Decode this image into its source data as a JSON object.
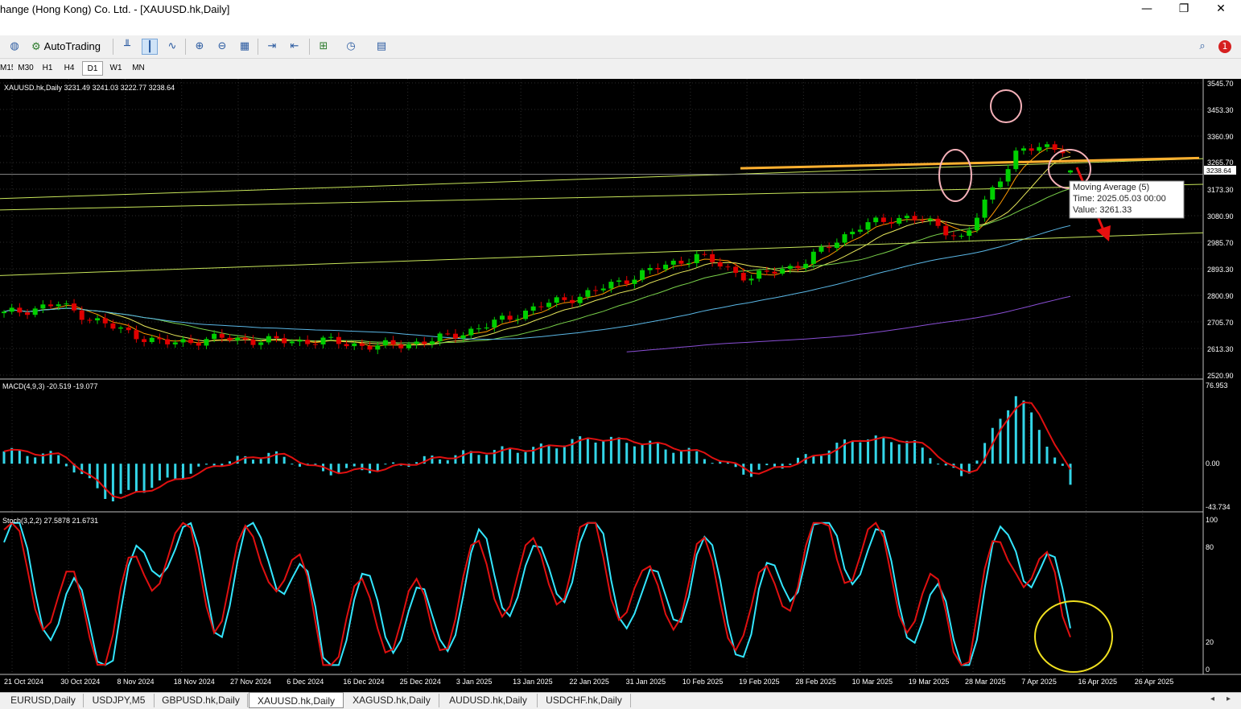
{
  "window": {
    "title": "hange (Hong Kong) Co. Ltd. - [XAUUSD.hk,Daily]",
    "minimize": "—",
    "maximize": "❐",
    "close": "✕",
    "mdi_min": "–",
    "mdi_restore": "🗗",
    "mdi_close": "✕"
  },
  "toolbar": {
    "autotrading_label": "AutoTrading",
    "notification_count": "1",
    "icons": [
      "connection-icon",
      "autotrading-icon",
      "bar-chart-icon",
      "candlestick-icon",
      "line-chart-icon",
      "zoom-in-icon",
      "zoom-out-icon",
      "tile-windows-icon",
      "chart-shift-icon",
      "autoscroll-icon",
      "indicators-icon",
      "periods-icon",
      "templates-icon",
      "search-icon",
      "notifications-icon"
    ]
  },
  "timeframes": [
    "M15",
    "M30",
    "H1",
    "H4",
    "D1",
    "W1",
    "MN"
  ],
  "active_timeframe": "D1",
  "chart": {
    "header": "XAUUSD.hk,Daily  3231.49 3241.03 3222.77 3238.64",
    "ohlc": {
      "open": 3231.49,
      "high": 3241.03,
      "low": 3222.77,
      "close": 3238.64
    },
    "current_price": "3238.64",
    "price_axis": [
      "3545.70",
      "3453.30",
      "3360.90",
      "3265.70",
      "3173.30",
      "3080.90",
      "2985.70",
      "2893.30",
      "2800.90",
      "2705.70",
      "2613.30",
      "2520.90"
    ],
    "date_axis": [
      "21 Oct 2024",
      "30 Oct 2024",
      "8 Nov 2024",
      "18 Nov 2024",
      "27 Nov 2024",
      "6 Dec 2024",
      "16 Dec 2024",
      "25 Dec 2024",
      "3 Jan 2025",
      "13 Jan 2025",
      "22 Jan 2025",
      "31 Jan 2025",
      "10 Feb 2025",
      "19 Feb 2025",
      "28 Feb 2025",
      "10 Mar 2025",
      "19 Mar 2025",
      "28 Mar 2025",
      "7 Apr 2025",
      "16 Apr 2025",
      "26 Apr 2025"
    ],
    "tooltip": {
      "line1": "Moving Average (5)",
      "line2": "Time: 2025.05.03 00:00",
      "line3": "Value: 3261.33"
    },
    "colors": {
      "bull": "#00d000",
      "bear": "#e00000",
      "ma5": "#ff9900",
      "ma10": "#e6e65a",
      "ma20": "#7ad24a",
      "ma50": "#5ab7e6",
      "ma100": "#8a4fd6",
      "trendline": "#ffb030"
    }
  },
  "macd": {
    "label": "MACD(4,9,3) -20.519 -19.077",
    "axis": [
      "76.953",
      "0.00",
      "-43.734"
    ],
    "colors": {
      "histogram": "#33d6e8",
      "signal": "#e01010"
    }
  },
  "stoch": {
    "label": "Stoch(3,2,2) 27.5878 21.6731",
    "axis": [
      "100",
      "80",
      "20",
      "0"
    ],
    "colors": {
      "main": "#33e6ff",
      "signal": "#e01010"
    }
  },
  "chart_data": [
    {
      "type": "candlestick",
      "title": "XAUUSD.hk,Daily",
      "x": [
        "21 Oct 2024",
        "30 Oct 2024",
        "8 Nov 2024",
        "18 Nov 2024",
        "27 Nov 2024",
        "6 Dec 2024",
        "16 Dec 2024",
        "25 Dec 2024",
        "3 Jan 2025",
        "13 Jan 2025",
        "22 Jan 2025",
        "31 Jan 2025",
        "10 Feb 2025",
        "19 Feb 2025",
        "28 Feb 2025",
        "10 Mar 2025",
        "19 Mar 2025",
        "28 Mar 2025",
        "7 Apr 2025",
        "16 Apr 2025",
        "26 Apr 2025"
      ],
      "close": [
        2735,
        2770,
        2690,
        2630,
        2650,
        2640,
        2640,
        2620,
        2640,
        2690,
        2760,
        2810,
        2880,
        2940,
        2860,
        2915,
        3040,
        3080,
        3000,
        3310,
        3320
      ],
      "last_candle": {
        "open": 3231.49,
        "high": 3241.03,
        "low": 3222.77,
        "close": 3238.64
      },
      "ylim": [
        2520.9,
        3545.7
      ]
    },
    {
      "type": "bar",
      "title": "MACD(4,9,3)",
      "x": [
        "21 Oct 2024",
        "30 Oct 2024",
        "8 Nov 2024",
        "18 Nov 2024",
        "27 Nov 2024",
        "6 Dec 2024",
        "16 Dec 2024",
        "25 Dec 2024",
        "3 Jan 2025",
        "13 Jan 2025",
        "22 Jan 2025",
        "31 Jan 2025",
        "10 Feb 2025",
        "19 Feb 2025",
        "28 Feb 2025",
        "10 Mar 2025",
        "19 Mar 2025",
        "28 Mar 2025",
        "7 Apr 2025",
        "16 Apr 2025",
        "26 Apr 2025"
      ],
      "values": [
        12,
        8,
        -35,
        -18,
        0,
        10,
        -8,
        -5,
        5,
        12,
        15,
        25,
        20,
        10,
        -10,
        5,
        25,
        22,
        -15,
        70,
        -18
      ],
      "signal_last": -19.077,
      "macd_last": -20.519,
      "ylim": [
        -43.734,
        76.953
      ]
    },
    {
      "type": "line",
      "title": "Stoch(3,2,2)",
      "x": [
        "21 Oct 2024",
        "30 Oct 2024",
        "8 Nov 2024",
        "18 Nov 2024",
        "27 Nov 2024",
        "6 Dec 2024",
        "16 Dec 2024",
        "25 Dec 2024",
        "3 Jan 2025",
        "13 Jan 2025",
        "22 Jan 2025",
        "31 Jan 2025",
        "10 Feb 2025",
        "19 Feb 2025",
        "28 Feb 2025",
        "10 Mar 2025",
        "19 Mar 2025",
        "28 Mar 2025",
        "7 Apr 2025",
        "16 Apr 2025",
        "26 Apr 2025"
      ],
      "series": [
        {
          "name": "main",
          "values": [
            85,
            40,
            20,
            95,
            45,
            90,
            15,
            45,
            25,
            70,
            55,
            90,
            35,
            70,
            25,
            85,
            85,
            45,
            15,
            95,
            27.5878
          ]
        },
        {
          "name": "signal",
          "values": [
            80,
            45,
            25,
            90,
            50,
            85,
            20,
            40,
            30,
            65,
            60,
            85,
            40,
            65,
            30,
            80,
            85,
            50,
            20,
            90,
            21.6731
          ]
        }
      ],
      "ylim": [
        0,
        100
      ]
    }
  ],
  "tabs": [
    "EURUSD,Daily",
    "USDJPY,M5",
    "GBPUSD.hk,Daily",
    "XAUUSD.hk,Daily",
    "XAGUSD.hk,Daily",
    "AUDUSD.hk,Daily",
    "USDCHF.hk,Daily"
  ],
  "active_tab": "XAUUSD.hk,Daily",
  "nav": {
    "left": "◂",
    "right": "▸"
  }
}
